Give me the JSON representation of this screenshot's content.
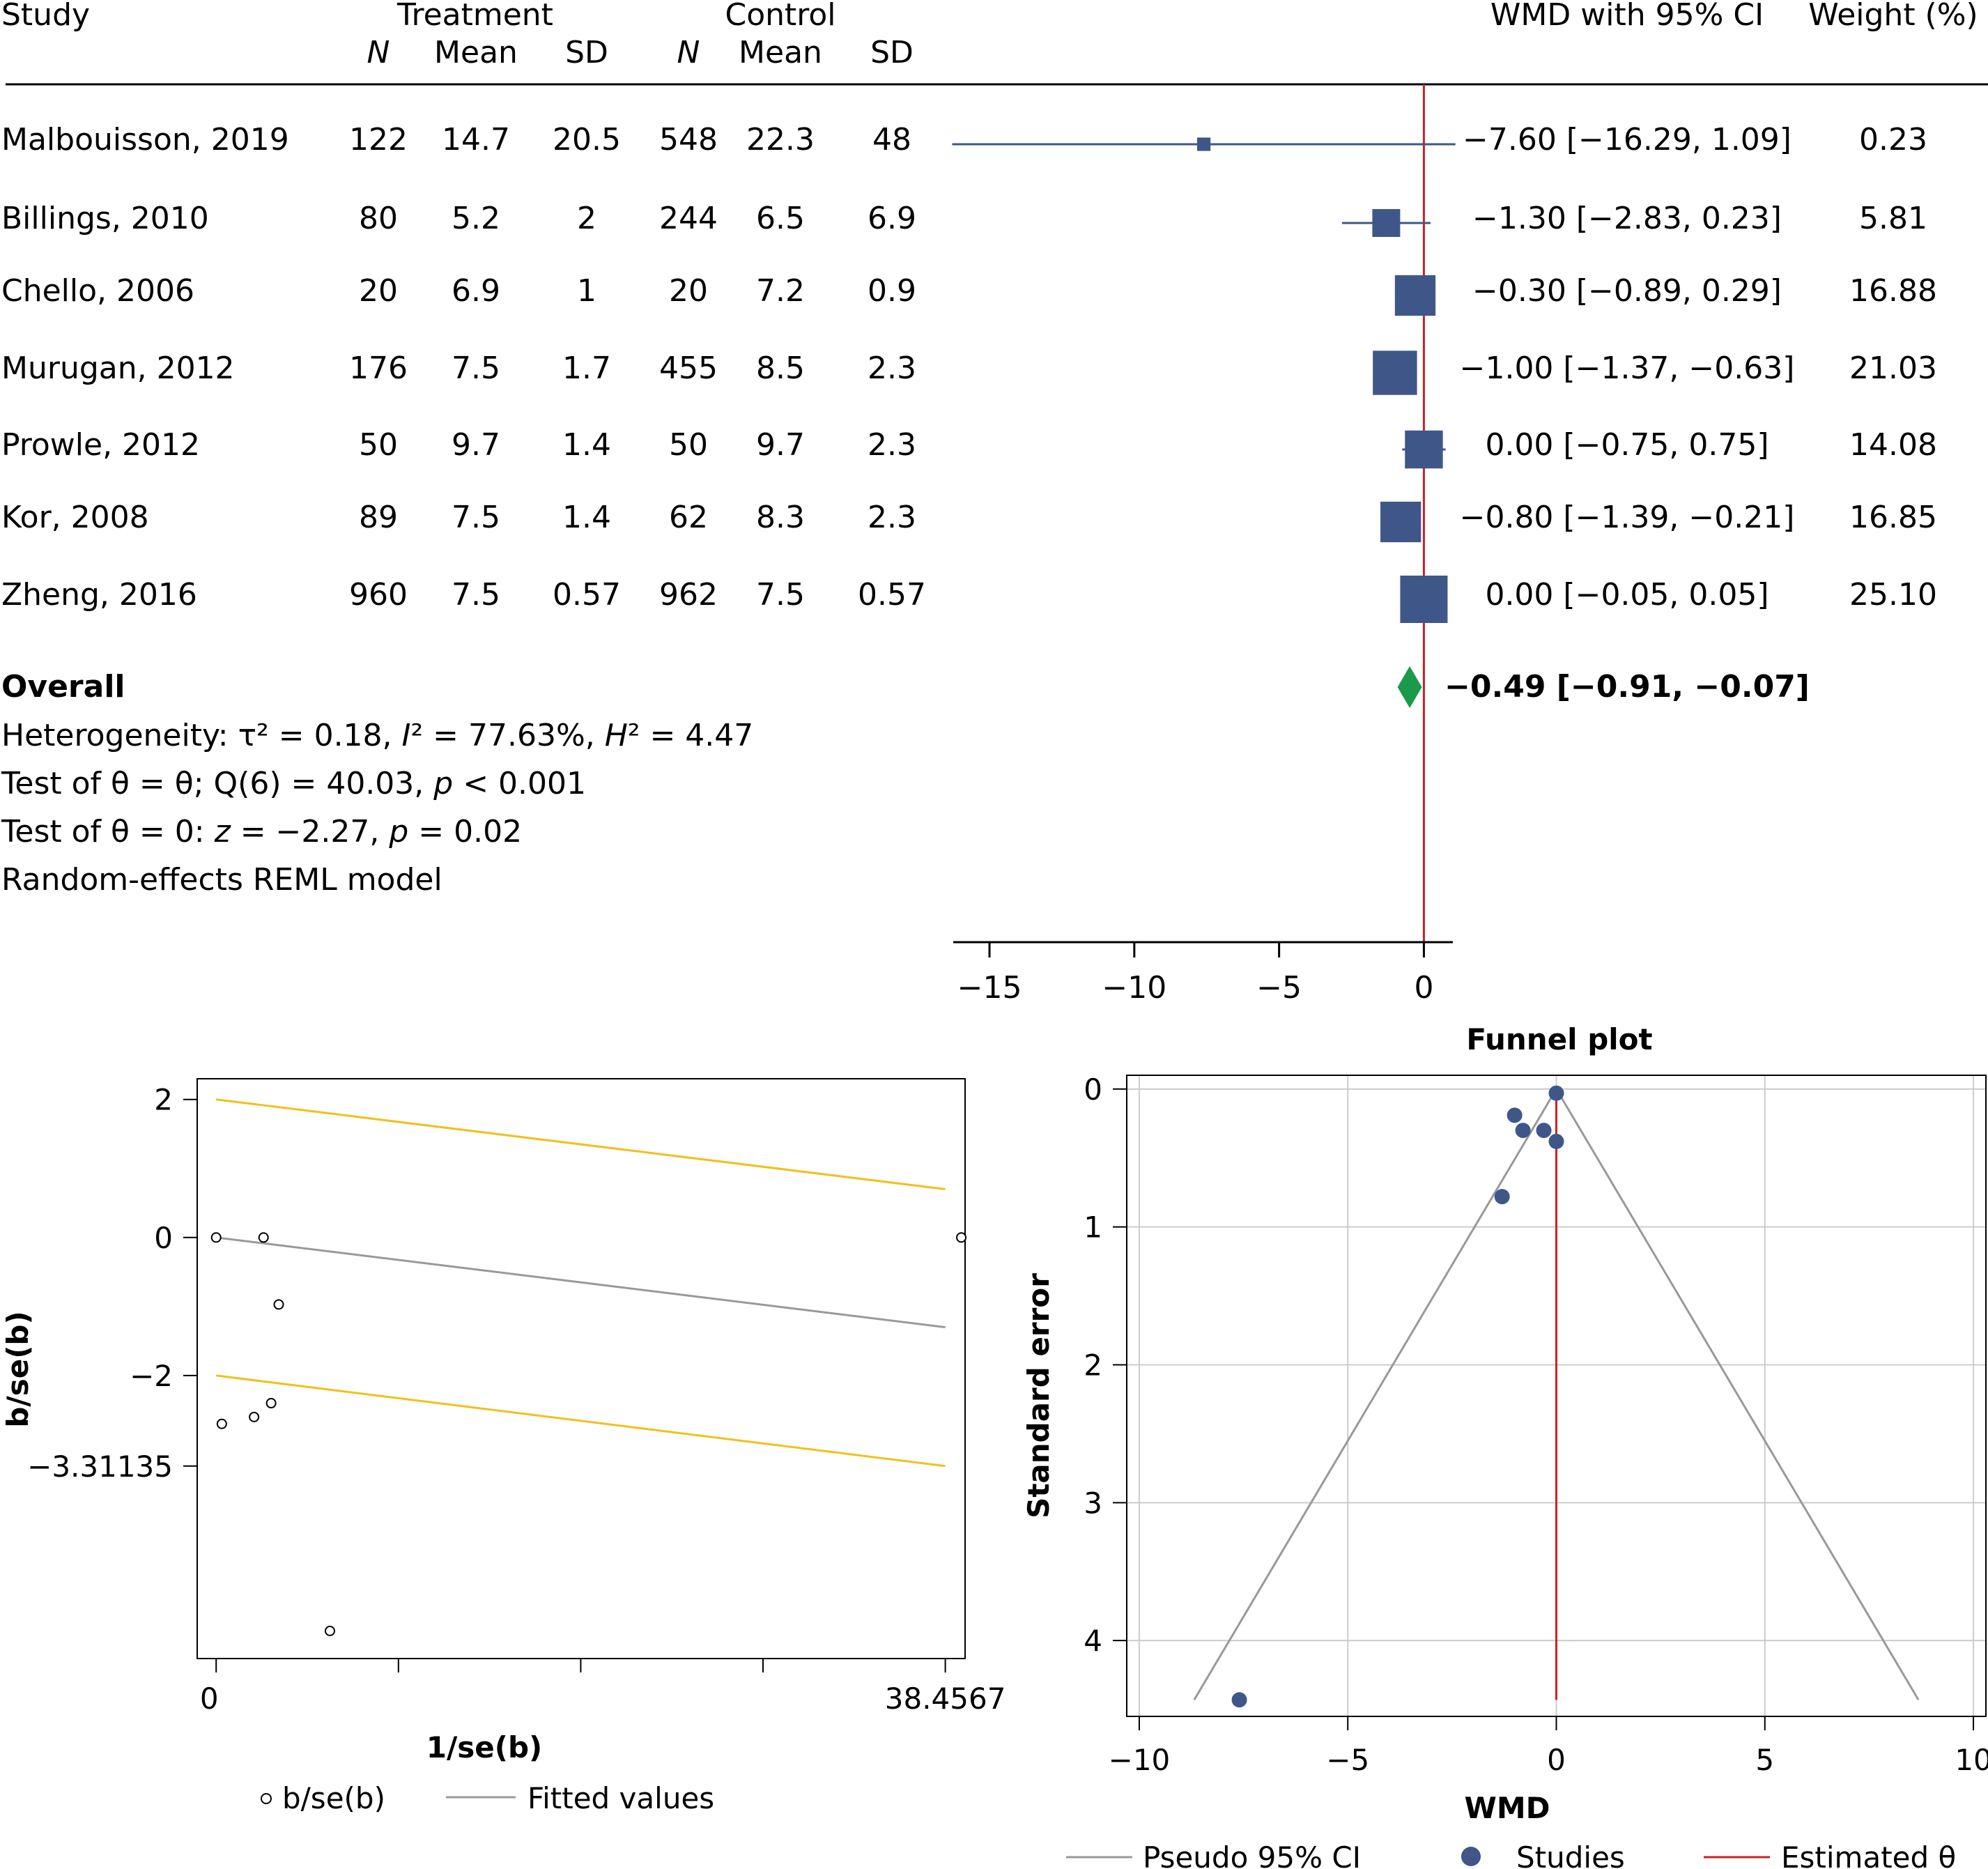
{
  "forest": {
    "headers": {
      "study": "Study",
      "treatment": "Treatment",
      "control": "Control",
      "n": "N",
      "mean": "Mean",
      "sd": "SD",
      "wmd": "WMD with 95% CI",
      "weight": "Weight (%)"
    },
    "studies": [
      {
        "name": "Malbouisson, 2019",
        "tn": "122",
        "tmean": "14.7",
        "tsd": "20.5",
        "cn": "548",
        "cmean": "22.3",
        "csd": "48",
        "est": -7.6,
        "lo": -16.29,
        "hi": 1.09,
        "ci": "−7.60 [−16.29, 1.09]",
        "weight": "0.23"
      },
      {
        "name": "Billings, 2010",
        "tn": "80",
        "tmean": "5.2",
        "tsd": "2",
        "cn": "244",
        "cmean": "6.5",
        "csd": "6.9",
        "est": -1.3,
        "lo": -2.83,
        "hi": 0.23,
        "ci": "−1.30 [−2.83, 0.23]",
        "weight": "5.81"
      },
      {
        "name": "Chello, 2006",
        "tn": "20",
        "tmean": "6.9",
        "tsd": "1",
        "cn": "20",
        "cmean": "7.2",
        "csd": "0.9",
        "est": -0.3,
        "lo": -0.89,
        "hi": 0.29,
        "ci": "−0.30 [−0.89, 0.29]",
        "weight": "16.88"
      },
      {
        "name": "Murugan, 2012",
        "tn": "176",
        "tmean": "7.5",
        "tsd": "1.7",
        "cn": "455",
        "cmean": "8.5",
        "csd": "2.3",
        "est": -1.0,
        "lo": -1.37,
        "hi": -0.63,
        "ci": "−1.00 [−1.37, −0.63]",
        "weight": "21.03"
      },
      {
        "name": "Prowle, 2012",
        "tn": "50",
        "tmean": "9.7",
        "tsd": "1.4",
        "cn": "50",
        "cmean": "9.7",
        "csd": "2.3",
        "est": 0.0,
        "lo": -0.75,
        "hi": 0.75,
        "ci": "0.00 [−0.75, 0.75]",
        "weight": "14.08"
      },
      {
        "name": "Kor, 2008",
        "tn": "89",
        "tmean": "7.5",
        "tsd": "1.4",
        "cn": "62",
        "cmean": "8.3",
        "csd": "2.3",
        "est": -0.8,
        "lo": -1.39,
        "hi": -0.21,
        "ci": "−0.80 [−1.39, −0.21]",
        "weight": "16.85"
      },
      {
        "name": "Zheng, 2016",
        "tn": "960",
        "tmean": "7.5",
        "tsd": "0.57",
        "cn": "962",
        "cmean": "7.5",
        "csd": "0.57",
        "est": 0.0,
        "lo": -0.05,
        "hi": 0.05,
        "ci": "0.00 [−0.05, 0.05]",
        "weight": "25.10"
      }
    ],
    "overall": {
      "label": "Overall",
      "est": -0.49,
      "lo": -0.91,
      "hi": -0.07,
      "ci": "−0.49 [−0.91, −0.07]"
    },
    "notes": {
      "heterogeneity": [
        "Heterogeneity: τ² = 0.18, ",
        "I",
        "² = 77.63%, ",
        "H",
        "² = 4.47"
      ],
      "test_q": [
        "Test of θ = θ; Q(6) = 40.03, ",
        "p",
        " < 0.001"
      ],
      "test_z": [
        "Test of θ = 0: ",
        "z",
        " = −2.27, ",
        "p",
        " = 0.02"
      ],
      "model": "Random-effects REML model"
    },
    "axis": {
      "ticks": [
        -15,
        -10,
        -5,
        0
      ],
      "tick_labels": [
        "−15",
        "−10",
        "−5",
        "0"
      ],
      "range": [
        -16.3,
        1.0
      ]
    },
    "colors": {
      "marker": "#3f5788",
      "overall": "#1a9a4a",
      "null_line": "#cc2222"
    }
  },
  "galbraith": {
    "ylabel": "b/se(b)",
    "xlabel": "1/se(b)",
    "yticks": [
      2,
      0,
      -2,
      -3.31135
    ],
    "ytick_labels": [
      "2",
      "0",
      "−2",
      "−3.31135"
    ],
    "xtick_labels": [
      "0",
      "38.4567"
    ],
    "xrange": [
      -1.0,
      39.5
    ],
    "yrange": [
      -6.1,
      2.3
    ],
    "points": [
      [
        0,
        0
      ],
      [
        2.5,
        0
      ],
      [
        39.3,
        0
      ],
      [
        3.3,
        -0.97
      ],
      [
        0.3,
        -2.7
      ],
      [
        2,
        -2.6
      ],
      [
        2.9,
        -2.4
      ],
      [
        6,
        -5.7
      ]
    ],
    "fitted": [
      [
        0,
        0
      ],
      [
        38.4567,
        -1.3
      ]
    ],
    "upper": [
      [
        0,
        2
      ],
      [
        38.4567,
        0.7
      ]
    ],
    "lower": [
      [
        0,
        -2
      ],
      [
        38.4567,
        -3.31135
      ]
    ],
    "legend": {
      "points": "b/se(b)",
      "fitted": "Fitted values"
    },
    "colors": {
      "bound": "#f2c01c",
      "fitted": "#999999",
      "point": "#000000"
    }
  },
  "funnel": {
    "title": "Funnel plot",
    "ylabel": "Standard error",
    "xlabel": "WMD",
    "xticks": [
      -10,
      -5,
      0,
      5,
      10
    ],
    "xtick_labels": [
      "−10",
      "−5",
      "0",
      "5",
      "10"
    ],
    "yticks": [
      0,
      1,
      2,
      3,
      4
    ],
    "ytick_labels": [
      "0",
      "1",
      "2",
      "3",
      "4"
    ],
    "xrange": [
      -10.3,
      10.3
    ],
    "yrange": [
      -0.1,
      4.55
    ],
    "points": [
      [
        -7.6,
        4.43
      ],
      [
        -1.3,
        0.78
      ],
      [
        -1.0,
        0.19
      ],
      [
        -0.8,
        0.3
      ],
      [
        -0.3,
        0.3
      ],
      [
        0.0,
        0.38
      ],
      [
        0.0,
        0.03
      ]
    ],
    "theta": 0,
    "se_max": 4.43,
    "legend": {
      "ci": "Pseudo 95% CI",
      "studies": "Studies",
      "theta": "Estimated θ"
    },
    "colors": {
      "ci": "#999999",
      "point": "#3f5788",
      "theta": "#cc2222",
      "grid": "#cccccc"
    }
  }
}
